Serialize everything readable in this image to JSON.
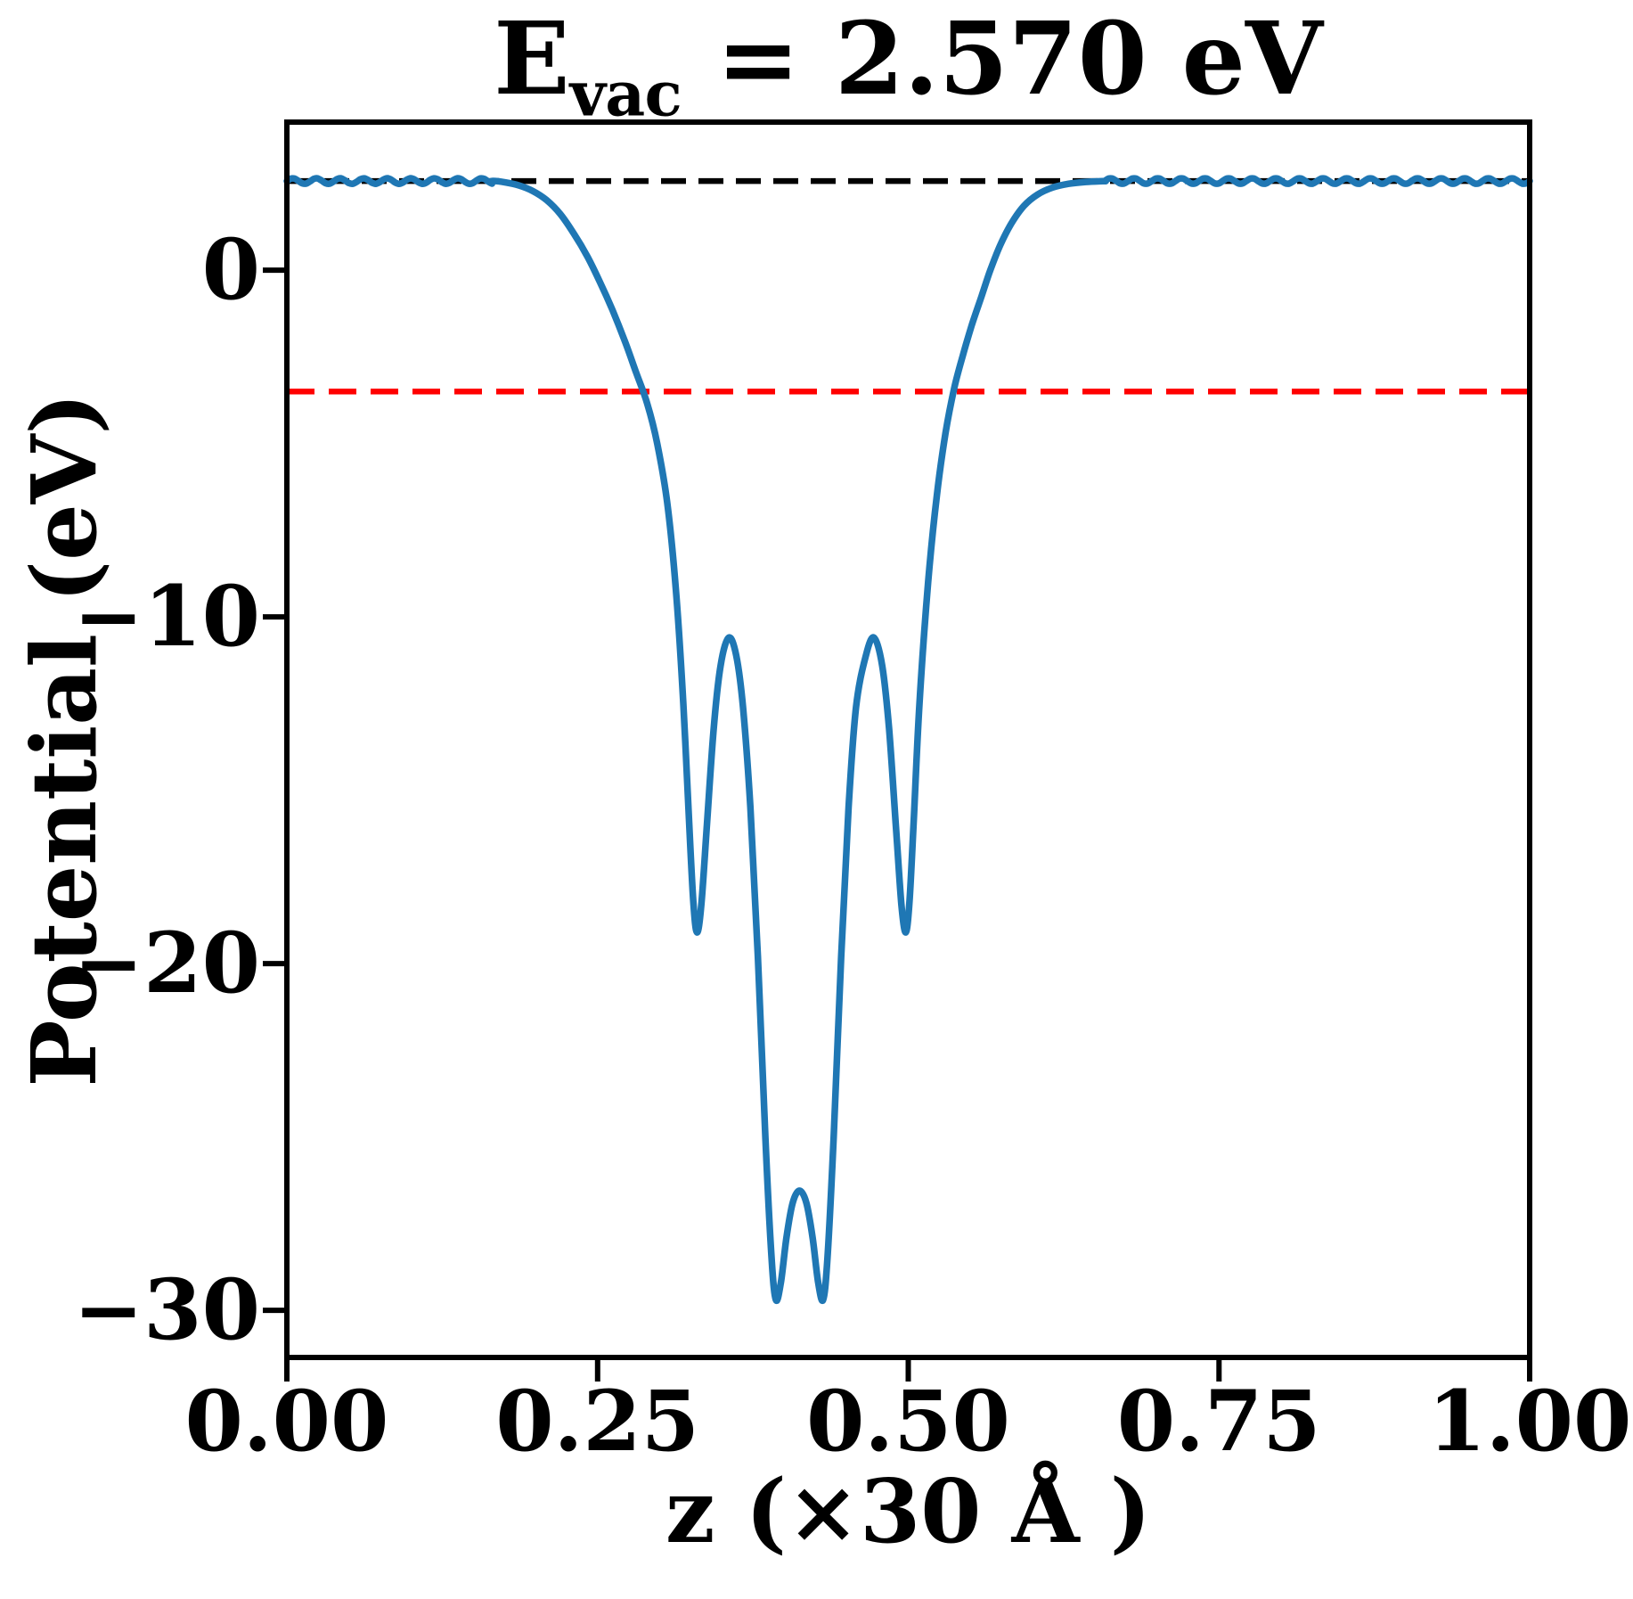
{
  "title": {
    "prefix": "E",
    "subscript": "vac",
    "suffix": " = 2.570 eV"
  },
  "chart_data": {
    "type": "line",
    "title": "E_vac = 2.570 eV",
    "xlabel": "z (×30 Å )",
    "ylabel": "Potential (eV)",
    "xlim": [
      0,
      1
    ],
    "ylim": [
      -31.36,
      4.27
    ],
    "grid": false,
    "legend": "none",
    "xticks": [
      {
        "v": 0.0,
        "label": "0.00"
      },
      {
        "v": 0.25,
        "label": "0.25"
      },
      {
        "v": 0.5,
        "label": "0.50"
      },
      {
        "v": 0.75,
        "label": "0.75"
      },
      {
        "v": 1.0,
        "label": "1.00"
      }
    ],
    "yticks": [
      {
        "v": 0,
        "label": "0"
      },
      {
        "v": -10,
        "label": "−10"
      },
      {
        "v": -20,
        "label": "−20"
      },
      {
        "v": -30,
        "label": "−30"
      }
    ],
    "hlines": [
      {
        "name": "vacuum-level",
        "y": 2.57,
        "color": "#000000",
        "dash": [
          28,
          14
        ],
        "width": 6.5
      },
      {
        "name": "reference-level",
        "y": -3.5,
        "color": "#ff0000",
        "dash": [
          31,
          16
        ],
        "width": 6.5
      }
    ],
    "series": [
      {
        "name": "planar-averaged-potential",
        "color": "#1f77b4",
        "width": 7.5,
        "segments": [
          {
            "type": "ripple",
            "x0": 0.0,
            "x1": 0.165,
            "base": 2.57,
            "amp": 0.08,
            "period": 0.019
          },
          {
            "type": "points",
            "pts": [
              [
                0.165,
                2.57
              ],
              [
                0.176,
                2.53
              ],
              [
                0.187,
                2.44
              ],
              [
                0.198,
                2.28
              ],
              [
                0.209,
                2.02
              ],
              [
                0.22,
                1.62
              ],
              [
                0.231,
                1.05
              ],
              [
                0.242,
                0.38
              ],
              [
                0.252,
                -0.35
              ],
              [
                0.262,
                -1.15
              ],
              [
                0.272,
                -2.05
              ],
              [
                0.281,
                -2.95
              ],
              [
                0.29,
                -3.85
              ],
              [
                0.298,
                -5.0
              ],
              [
                0.306,
                -6.7
              ],
              [
                0.313,
                -9.2
              ],
              [
                0.319,
                -12.5
              ],
              [
                0.3235,
                -15.8
              ],
              [
                0.327,
                -18.2
              ],
              [
                0.33,
                -19.1
              ],
              [
                0.3335,
                -18.3
              ],
              [
                0.338,
                -16.0
              ],
              [
                0.3435,
                -13.2
              ],
              [
                0.349,
                -11.4
              ],
              [
                0.3555,
                -10.6
              ],
              [
                0.3615,
                -11.1
              ],
              [
                0.367,
                -12.6
              ],
              [
                0.373,
                -15.5
              ],
              [
                0.379,
                -19.8
              ],
              [
                0.385,
                -25.0
              ],
              [
                0.39,
                -28.5
              ],
              [
                0.3935,
                -29.7
              ],
              [
                0.3975,
                -29.2
              ],
              [
                0.402,
                -27.9
              ],
              [
                0.407,
                -26.9
              ],
              [
                0.4125,
                -26.55
              ],
              [
                0.418,
                -26.9
              ],
              [
                0.423,
                -27.9
              ],
              [
                0.4275,
                -29.2
              ],
              [
                0.4315,
                -29.7
              ],
              [
                0.435,
                -28.5
              ],
              [
                0.44,
                -25.0
              ],
              [
                0.446,
                -19.8
              ],
              [
                0.452,
                -15.5
              ],
              [
                0.458,
                -12.6
              ],
              [
                0.466,
                -11.1
              ],
              [
                0.4725,
                -10.6
              ],
              [
                0.479,
                -11.4
              ],
              [
                0.4845,
                -13.2
              ],
              [
                0.49,
                -16.0
              ],
              [
                0.4945,
                -18.3
              ],
              [
                0.498,
                -19.1
              ],
              [
                0.501,
                -18.2
              ],
              [
                0.5045,
                -15.8
              ],
              [
                0.509,
                -12.5
              ],
              [
                0.516,
                -9.0
              ],
              [
                0.523,
                -6.5
              ],
              [
                0.53,
                -4.7
              ],
              [
                0.537,
                -3.4
              ],
              [
                0.544,
                -2.45
              ],
              [
                0.551,
                -1.6
              ],
              [
                0.559,
                -0.75
              ],
              [
                0.566,
                0.0
              ],
              [
                0.574,
                0.72
              ],
              [
                0.583,
                1.35
              ],
              [
                0.593,
                1.85
              ],
              [
                0.604,
                2.18
              ],
              [
                0.616,
                2.38
              ],
              [
                0.629,
                2.49
              ],
              [
                0.643,
                2.545
              ],
              [
                0.658,
                2.57
              ]
            ]
          },
          {
            "type": "ripple",
            "x0": 0.658,
            "x1": 1.0,
            "base": 2.57,
            "amp": 0.08,
            "period": 0.019
          }
        ]
      }
    ]
  },
  "colors": {
    "background": "#ffffff",
    "axes": "#000000",
    "curve": "#1f77b4",
    "vacuum_line": "#000000",
    "reference_line": "#ff0000"
  }
}
